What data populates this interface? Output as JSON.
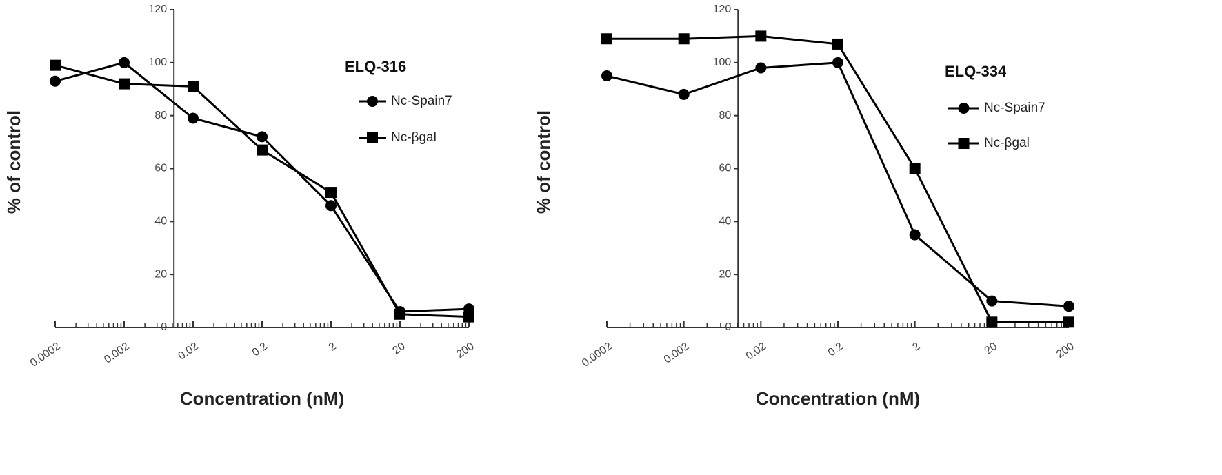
{
  "chart_data": [
    {
      "type": "line",
      "title": "ELQ-316",
      "xlabel": "Concentration (nM)",
      "ylabel": "% of control",
      "xscale": "log",
      "x": [
        0.0002,
        0.002,
        0.02,
        0.2,
        2,
        20,
        200
      ],
      "xlim": [
        0.0002,
        200
      ],
      "xticks": [
        0.0002,
        0.002,
        0.02,
        0.2,
        2,
        20,
        200
      ],
      "ylim": [
        0,
        120
      ],
      "yticks": [
        0,
        20,
        40,
        60,
        80,
        100,
        120
      ],
      "series": [
        {
          "name": "Nc-Spain7",
          "color": "#000000",
          "marker": "circle",
          "values": [
            93,
            100,
            79,
            72,
            46,
            6,
            7
          ]
        },
        {
          "name": "Nc-βgal",
          "color": "#000000",
          "marker": "square",
          "values": [
            99,
            92,
            91,
            67,
            51,
            5,
            4
          ]
        }
      ]
    },
    {
      "type": "line",
      "title": "ELQ-334",
      "xlabel": "Concentration (nM)",
      "ylabel": "% of control",
      "xscale": "log",
      "x": [
        0.0002,
        0.002,
        0.02,
        0.2,
        2,
        20,
        200
      ],
      "xlim": [
        0.0002,
        200
      ],
      "xticks": [
        0.0002,
        0.002,
        0.02,
        0.2,
        2,
        20,
        200
      ],
      "ylim": [
        0,
        120
      ],
      "yticks": [
        0,
        20,
        40,
        60,
        80,
        100,
        120
      ],
      "series": [
        {
          "name": "Nc-Spain7",
          "color": "#000000",
          "marker": "circle",
          "values": [
            95,
            88,
            98,
            100,
            35,
            10,
            8
          ]
        },
        {
          "name": "Nc-βgal",
          "color": "#000000",
          "marker": "square",
          "values": [
            109,
            109,
            110,
            107,
            60,
            2,
            2
          ]
        }
      ]
    }
  ]
}
